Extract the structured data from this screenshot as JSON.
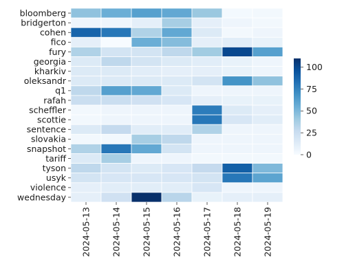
{
  "chart_data": {
    "type": "heatmap",
    "title": "",
    "xlabel": "",
    "ylabel": "",
    "x_categories": [
      "2024-05-13",
      "2024-05-14",
      "2024-05-15",
      "2024-05-16",
      "2024-05-17",
      "2024-05-18",
      "2024-05-19"
    ],
    "y_categories": [
      "bloomberg",
      "bridgerton",
      "cohen",
      "fico",
      "fury",
      "georgia",
      "kharkiv",
      "oleksandr",
      "q1",
      "rafah",
      "scheffler",
      "scottie",
      "sentence",
      "slovakia",
      "snapshot",
      "tariff",
      "tyson",
      "usyk",
      "violence",
      "wednesday"
    ],
    "values": [
      [
        45,
        55,
        62,
        58,
        42,
        2,
        3
      ],
      [
        5,
        5,
        10,
        38,
        10,
        5,
        3
      ],
      [
        88,
        80,
        35,
        58,
        15,
        3,
        5
      ],
      [
        10,
        0,
        55,
        48,
        10,
        12,
        8
      ],
      [
        35,
        20,
        20,
        30,
        40,
        100,
        62
      ],
      [
        15,
        30,
        20,
        15,
        12,
        8,
        5
      ],
      [
        15,
        15,
        12,
        10,
        10,
        8,
        5
      ],
      [
        15,
        15,
        15,
        15,
        20,
        68,
        45
      ],
      [
        30,
        62,
        58,
        15,
        5,
        5,
        5
      ],
      [
        25,
        25,
        22,
        18,
        10,
        8,
        8
      ],
      [
        3,
        5,
        5,
        5,
        78,
        15,
        10
      ],
      [
        3,
        5,
        5,
        5,
        80,
        18,
        12
      ],
      [
        15,
        28,
        12,
        12,
        35,
        5,
        5
      ],
      [
        3,
        3,
        38,
        30,
        5,
        5,
        5
      ],
      [
        35,
        80,
        58,
        20,
        5,
        5,
        5
      ],
      [
        15,
        38,
        5,
        5,
        3,
        3,
        3
      ],
      [
        30,
        20,
        15,
        18,
        28,
        90,
        50
      ],
      [
        20,
        18,
        18,
        18,
        20,
        80,
        60
      ],
      [
        10,
        12,
        12,
        12,
        18,
        5,
        5
      ],
      [
        10,
        22,
        110,
        32,
        8,
        10,
        10
      ]
    ],
    "colorbar": {
      "ticks": [
        0,
        25,
        50,
        75,
        100
      ],
      "vmin": 0,
      "vmax": 110,
      "cmap": "Blues"
    },
    "grid": true,
    "legend": "right"
  }
}
